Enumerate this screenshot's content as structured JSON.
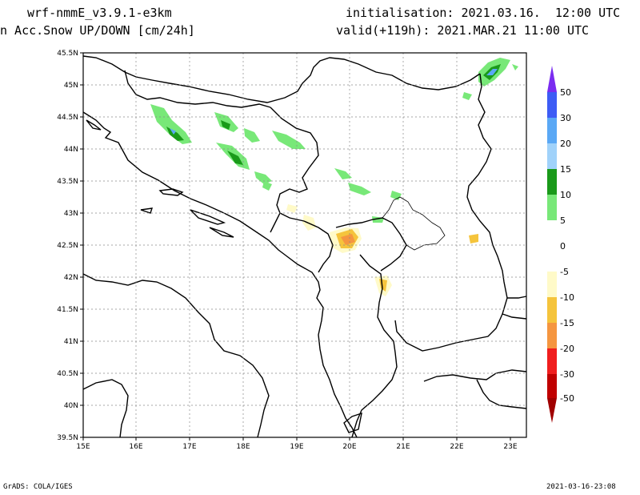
{
  "header": {
    "model": "wrf-nmmE_v3.9.1-e3km",
    "variable": "n Acc.Snow UP/DOWN [cm/24h]",
    "init": "initialisation: 2021.03.16.  12:00 UTC",
    "valid": "valid(+119h): 2021.MAR.21 11:00 UTC"
  },
  "footer": {
    "left": "GrADS: COLA/IGES",
    "right": "2021-03-16-23:08"
  },
  "map": {
    "lon_ticks": [
      "15E",
      "16E",
      "17E",
      "18E",
      "19E",
      "20E",
      "21E",
      "22E",
      "23E"
    ],
    "lat_ticks": [
      "45.5N",
      "45N",
      "44.5N",
      "44N",
      "43.5N",
      "43N",
      "42.5N",
      "42N",
      "41.5N",
      "41N",
      "40.5N",
      "40N",
      "39.5N"
    ]
  },
  "colorbar": {
    "labels": [
      "50",
      "30",
      "20",
      "15",
      "10",
      "5",
      "0",
      "-5",
      "-10",
      "-15",
      "-20",
      "-30",
      "-50"
    ],
    "colors": [
      "#7a2cf0",
      "#3d5cf5",
      "#5aa8f5",
      "#a0d2fa",
      "#1a9a1a",
      "#78e878",
      "#ffffff",
      "#ffffff",
      "#fffac8",
      "#f5c43c",
      "#f59640",
      "#f01e1e",
      "#c00000",
      "#a00000"
    ]
  }
}
